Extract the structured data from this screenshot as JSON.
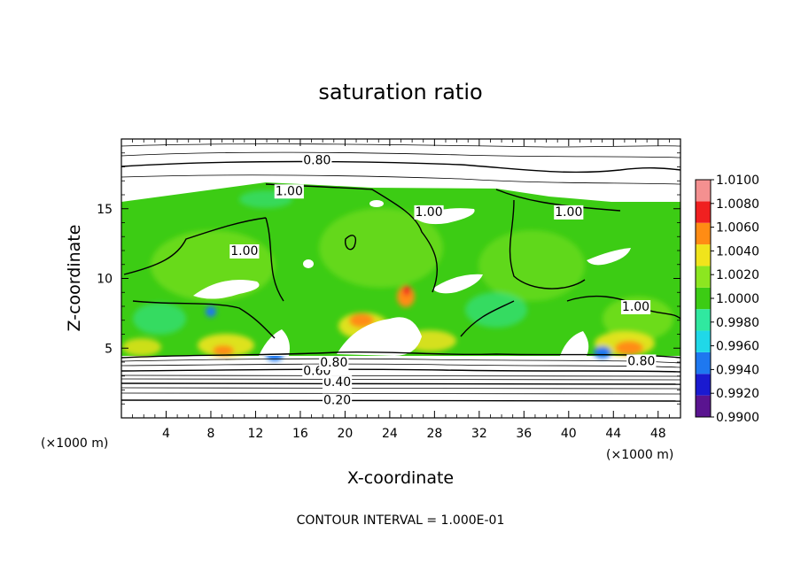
{
  "chart_data": {
    "type": "heatmap",
    "title": "saturation ratio",
    "xlabel": "X-coordinate",
    "ylabel": "Z-coordinate",
    "x_unit_left": "(×1000 m)",
    "x_unit_right": "(×1000 m)",
    "footer": "CONTOUR INTERVAL = 1.000E-01",
    "xlim": [
      0,
      50
    ],
    "ylim": [
      0,
      20
    ],
    "x_ticks": [
      4,
      8,
      12,
      16,
      20,
      24,
      28,
      32,
      36,
      40,
      44,
      48
    ],
    "x_tick_labels": [
      "4",
      "8",
      "12",
      "16",
      "20",
      "24",
      "28",
      "32",
      "36",
      "40",
      "44",
      "48"
    ],
    "y_ticks": [
      5,
      10,
      15
    ],
    "y_tick_labels": [
      "5",
      "10",
      "15"
    ],
    "colorbar": {
      "levels": [
        0.99,
        0.992,
        0.994,
        0.996,
        0.998,
        1.0,
        1.002,
        1.004,
        1.006,
        1.008,
        1.01
      ],
      "labels": [
        "0.9900",
        "0.9920",
        "0.9940",
        "0.9960",
        "0.9980",
        "1.0000",
        "1.0020",
        "1.0040",
        "1.0060",
        "1.0080",
        "1.0100"
      ],
      "colors": [
        "#5a1490",
        "#1a1ad0",
        "#1e78f0",
        "#20d8e8",
        "#30e8a0",
        "#3ccc14",
        "#8ce620",
        "#f0e41c",
        "#ff8c14",
        "#f02020",
        "#f49090"
      ]
    },
    "contour_interval": 0.1,
    "contours": [
      {
        "level": 0.2,
        "label": "0.20",
        "z": 1.3,
        "label_x": 19.3
      },
      {
        "level": 0.4,
        "label": "0.40",
        "z": 2.6,
        "label_x": 19.3
      },
      {
        "level": 0.6,
        "label": "0.60",
        "z": 3.4,
        "label_x": 17.5
      },
      {
        "level": 0.8,
        "label": "0.80",
        "z": 4.0,
        "label_x": 19.0
      },
      {
        "level": 0.8,
        "label": "0.80",
        "z": 4.1,
        "label_x": 46.5
      },
      {
        "level": 0.8,
        "label": "0.80",
        "z": 18.5,
        "label_x": 17.5
      },
      {
        "level": 1.0,
        "label": "1.00",
        "z": 16.3,
        "label_x": 15.0
      },
      {
        "level": 1.0,
        "label": "1.00",
        "z": 14.8,
        "label_x": 27.5
      },
      {
        "level": 1.0,
        "label": "1.00",
        "z": 14.8,
        "label_x": 40.0
      },
      {
        "level": 1.0,
        "label": "1.00",
        "z": 12.0,
        "label_x": 11.0
      },
      {
        "level": 1.0,
        "label": "1.00",
        "z": 8.0,
        "label_x": 46.0
      }
    ],
    "field_summary": {
      "supersaturated_layer_z": [
        4.5,
        15.5
      ],
      "typical_value": 1.0,
      "warm_spots_x": [
        8,
        20,
        24,
        46
      ],
      "cool_spots_x": [
        13,
        14,
        43
      ]
    }
  }
}
